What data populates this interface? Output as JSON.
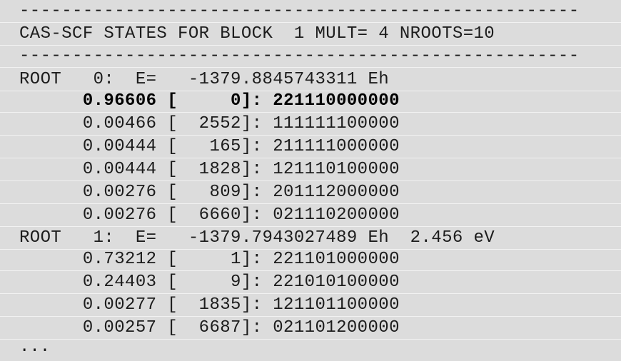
{
  "lines": [
    "-----------------------------------------------------",
    "CAS-SCF STATES FOR BLOCK  1 MULT= 4 NROOTS=10",
    "-----------------------------------------------------",
    "ROOT   0:  E=   -1379.8845743311 Eh",
    "      0.96606 [     0]: 221110000000",
    "      0.00466 [  2552]: 111111100000",
    "      0.00444 [   165]: 211111000000",
    "      0.00444 [  1828]: 121110100000",
    "      0.00276 [   809]: 201112000000",
    "      0.00276 [  6660]: 021110200000",
    "ROOT   1:  E=   -1379.7943027489 Eh  2.456 eV",
    "      0.73212 [     1]: 221101000000",
    "      0.24403 [     9]: 221010100000",
    "      0.00277 [  1835]: 121101100000",
    "      0.00257 [  6687]: 021101200000"
  ],
  "ellipsis": "..."
}
